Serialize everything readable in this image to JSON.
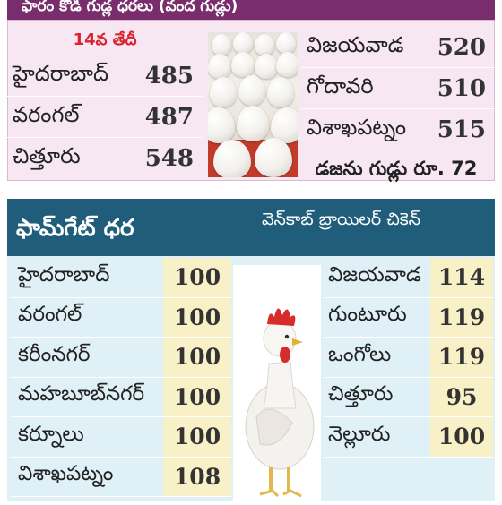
{
  "egg_panel": {
    "header": "ఫారం కోడి గుడ్ల ధరలు (వంద గుడ్లు)",
    "date": "14వ తేదీ",
    "left_rows": [
      {
        "city": "హైదరాబాద్",
        "price": "485"
      },
      {
        "city": "వరంగల్",
        "price": "487"
      },
      {
        "city": "చిత్తూరు",
        "price": "548"
      }
    ],
    "right_rows": [
      {
        "city": "విజయవాడ",
        "price": "520"
      },
      {
        "city": "గోదావరి",
        "price": "510"
      },
      {
        "city": "విశాఖపట్నం",
        "price": "515"
      }
    ],
    "dozen_text": "డజను గుడ్లు రూ. 72"
  },
  "chicken_panel": {
    "header_left": "ఫామ్‌గేట్ ధర",
    "header_right": "వెన్‌కాబ్ బ్రాయిలర్ చికెన్",
    "left_rows": [
      {
        "city": "హైదరాబాద్",
        "price": "100"
      },
      {
        "city": "వరంగల్",
        "price": "100"
      },
      {
        "city": "కరీంనగర్",
        "price": "100"
      },
      {
        "city": "మహబూబ్‌నగర్",
        "price": "100"
      },
      {
        "city": "కర్నూలు",
        "price": "100"
      },
      {
        "city": "విశాఖపట్నం",
        "price": "108"
      }
    ],
    "right_rows": [
      {
        "city": "విజయవాడ",
        "price": "114"
      },
      {
        "city": "గుంటూరు",
        "price": "119"
      },
      {
        "city": "ఒంగోలు",
        "price": "119"
      },
      {
        "city": "చిత్తూరు",
        "price": "95"
      },
      {
        "city": "నెల్లూరు",
        "price": "100"
      }
    ]
  },
  "colors": {
    "egg_header": "#7a2d6c",
    "egg_panel_bg": "#f6e7f2",
    "date_red": "#d9232d",
    "chicken_header": "#1f5d7a",
    "chicken_panel_bg": "#dff0f7",
    "price_cell_bg": "#f8f1c8"
  }
}
